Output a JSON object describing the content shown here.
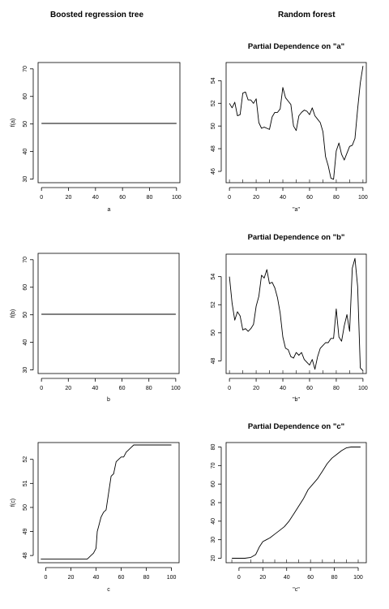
{
  "column_titles": {
    "left": "Boosted regression tree",
    "right": "Random forest"
  },
  "chart_data": [
    {
      "type": "line",
      "xlabel": "a",
      "ylabel": "f(a)",
      "title": "",
      "xlim": [
        -2.5,
        102.5
      ],
      "ylim": [
        28.7,
        72.3
      ],
      "xticks": [
        0,
        20,
        40,
        60,
        80,
        100
      ],
      "yticks": [
        30,
        40,
        50,
        60,
        70
      ],
      "x": [
        0,
        100
      ],
      "y": [
        50.2,
        50.2
      ]
    },
    {
      "type": "line",
      "xlabel": "\"a\"",
      "ylabel": "",
      "title": "Partial Dependence on \"a\"",
      "xlim": [
        -2.5,
        102.5
      ],
      "ylim": [
        45.0,
        55.6
      ],
      "xticks": [
        0,
        20,
        40,
        60,
        80,
        100
      ],
      "yticks": [
        46,
        48,
        50,
        52,
        54
      ],
      "x": [
        0,
        2,
        4,
        6,
        8,
        10,
        12,
        14,
        16,
        18,
        20,
        22,
        24,
        26,
        28,
        30,
        32,
        34,
        36,
        38,
        40,
        42,
        44,
        46,
        48,
        50,
        52,
        54,
        56,
        58,
        60,
        62,
        64,
        66,
        68,
        70,
        72,
        74,
        76,
        78,
        80,
        82,
        84,
        86,
        88,
        90,
        92,
        94,
        96,
        98,
        100
      ],
      "y": [
        52.0,
        51.6,
        52.1,
        50.9,
        51.0,
        52.9,
        53.0,
        52.3,
        52.3,
        52.0,
        52.4,
        50.3,
        49.8,
        49.9,
        49.8,
        49.7,
        50.8,
        51.2,
        51.2,
        51.5,
        53.4,
        52.5,
        52.2,
        51.9,
        50.0,
        49.6,
        50.9,
        51.2,
        51.4,
        51.3,
        51.0,
        51.6,
        50.9,
        50.6,
        50.3,
        49.5,
        47.3,
        46.5,
        45.4,
        45.3,
        47.8,
        48.5,
        47.5,
        47.0,
        47.6,
        48.2,
        48.3,
        48.9,
        51.5,
        53.8,
        55.3
      ],
      "rug_x": [
        0,
        10,
        20,
        30,
        40,
        50,
        60,
        70,
        80,
        90,
        100
      ]
    },
    {
      "type": "line",
      "xlabel": "b",
      "ylabel": "f(b)",
      "title": "",
      "xlim": [
        -2.5,
        102.5
      ],
      "ylim": [
        28.7,
        72.3
      ],
      "xticks": [
        0,
        20,
        40,
        60,
        80,
        100
      ],
      "yticks": [
        30,
        40,
        50,
        60,
        70
      ],
      "x": [
        0,
        100
      ],
      "y": [
        50.2,
        50.2
      ]
    },
    {
      "type": "line",
      "xlabel": "\"b\"",
      "ylabel": "",
      "title": "Partial Dependence on \"b\"",
      "xlim": [
        -2.5,
        102.5
      ],
      "ylim": [
        47.1,
        55.6
      ],
      "xticks": [
        0,
        20,
        40,
        60,
        80,
        100
      ],
      "yticks": [
        48,
        50,
        52,
        54
      ],
      "x": [
        0,
        2,
        4,
        6,
        8,
        10,
        12,
        14,
        16,
        18,
        20,
        22,
        24,
        26,
        28,
        30,
        32,
        34,
        36,
        38,
        40,
        42,
        44,
        46,
        48,
        50,
        52,
        54,
        56,
        58,
        60,
        62,
        64,
        66,
        68,
        70,
        72,
        74,
        76,
        78,
        80,
        82,
        84,
        86,
        88,
        90,
        92,
        94,
        96,
        98,
        100
      ],
      "y": [
        54.0,
        52.1,
        50.9,
        51.5,
        51.2,
        50.2,
        50.3,
        50.1,
        50.3,
        50.6,
        51.9,
        52.6,
        54.1,
        53.9,
        54.5,
        53.5,
        53.6,
        53.2,
        52.5,
        51.4,
        49.7,
        48.9,
        48.8,
        48.3,
        48.2,
        48.6,
        48.4,
        48.6,
        48.1,
        47.9,
        47.7,
        48.1,
        47.4,
        48.3,
        48.9,
        49.1,
        49.3,
        49.3,
        49.6,
        49.6,
        51.7,
        49.7,
        49.4,
        50.5,
        51.3,
        50.1,
        54.6,
        55.3,
        53.3,
        47.5,
        47.3
      ],
      "rug_x": [
        0,
        10,
        20,
        30,
        40,
        50,
        60,
        70,
        80,
        90,
        100
      ]
    },
    {
      "type": "line",
      "xlabel": "c",
      "ylabel": "f(c)",
      "title": "",
      "xlim": [
        -6.1,
        106.1
      ],
      "ylim": [
        47.7,
        52.7
      ],
      "xticks": [
        0,
        20,
        40,
        60,
        80,
        100
      ],
      "yticks": [
        48,
        49,
        50,
        51,
        52
      ],
      "x": [
        -4,
        33,
        34,
        36,
        38,
        40,
        41,
        42,
        44,
        46,
        48,
        50,
        52,
        54,
        56,
        58,
        60,
        62,
        64,
        66,
        68,
        70,
        72,
        100
      ],
      "y": [
        47.85,
        47.85,
        47.9,
        48.0,
        48.1,
        48.3,
        49.0,
        49.2,
        49.6,
        49.8,
        49.9,
        50.6,
        51.3,
        51.4,
        51.9,
        52.0,
        52.1,
        52.1,
        52.3,
        52.4,
        52.5,
        52.6,
        52.6,
        52.6
      ]
    },
    {
      "type": "line",
      "xlabel": "\"c\"",
      "ylabel": "",
      "title": "Partial Dependence on \"c\"",
      "xlim": [
        -10.8,
        106.8
      ],
      "ylim": [
        17.6,
        82.4
      ],
      "xticks": [
        0,
        20,
        40,
        60,
        80,
        100
      ],
      "yticks": [
        20,
        30,
        40,
        50,
        60,
        70,
        80
      ],
      "x": [
        -6,
        0,
        5,
        10,
        14,
        17,
        20,
        23,
        26,
        30,
        34,
        38,
        42,
        46,
        50,
        54,
        58,
        62,
        66,
        70,
        74,
        78,
        82,
        86,
        90,
        94,
        98,
        102
      ],
      "y": [
        20,
        20,
        20,
        20.5,
        22,
        26,
        29,
        30,
        31,
        33,
        35,
        37,
        40,
        44,
        48,
        52,
        57,
        60,
        63,
        67,
        71,
        74,
        76,
        78,
        79.5,
        80,
        80,
        80
      ],
      "rug_x": [
        -6,
        10,
        20,
        30,
        40,
        50,
        60,
        70,
        80,
        90,
        100
      ]
    }
  ]
}
